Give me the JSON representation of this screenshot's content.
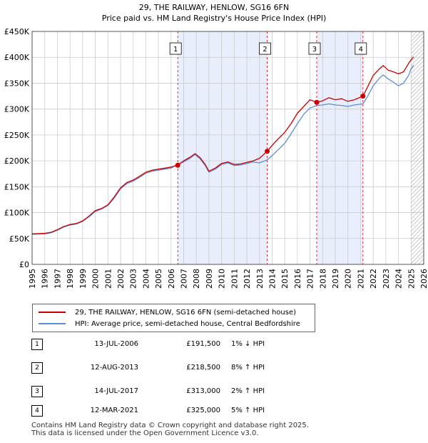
{
  "chart_data": {
    "type": "line",
    "title": "29, THE RAILWAY, HENLOW, SG16 6FN",
    "subtitle": "Price paid vs. HM Land Registry's House Price Index (HPI)",
    "xlim": [
      1995,
      2026
    ],
    "ylim": [
      0,
      450000
    ],
    "y_ticks": [
      0,
      50000,
      100000,
      150000,
      200000,
      250000,
      300000,
      350000,
      400000,
      450000
    ],
    "y_tick_labels": [
      "£0",
      "£50K",
      "£100K",
      "£150K",
      "£200K",
      "£250K",
      "£300K",
      "£350K",
      "£400K",
      "£450K"
    ],
    "x_ticks": [
      1995,
      1996,
      1997,
      1998,
      1999,
      2000,
      2001,
      2002,
      2003,
      2004,
      2005,
      2006,
      2007,
      2008,
      2009,
      2010,
      2011,
      2012,
      2013,
      2014,
      2015,
      2016,
      2017,
      2018,
      2019,
      2020,
      2021,
      2022,
      2023,
      2024,
      2025,
      2026
    ],
    "grid": true,
    "forecast_start": 2025.0,
    "shaded_regions": [
      [
        2006.53,
        2013.61
      ],
      [
        2017.53,
        2021.19
      ]
    ],
    "series": [
      {
        "name": "29, THE RAILWAY, HENLOW, SG16 6FN (semi-detached house)",
        "color": "#cc0000",
        "x": [
          1995.0,
          1995.5,
          1996.0,
          1996.5,
          1997.0,
          1997.5,
          1998.0,
          1998.5,
          1999.0,
          1999.5,
          2000.0,
          2000.5,
          2001.0,
          2001.5,
          2002.0,
          2002.5,
          2003.0,
          2003.5,
          2004.0,
          2004.5,
          2005.0,
          2005.5,
          2006.0,
          2006.53,
          2007.0,
          2007.5,
          2007.9,
          2008.3,
          2008.7,
          2009.0,
          2009.5,
          2010.0,
          2010.5,
          2011.0,
          2011.5,
          2012.0,
          2012.5,
          2013.0,
          2013.61,
          2014.0,
          2014.5,
          2015.0,
          2015.5,
          2016.0,
          2016.5,
          2017.0,
          2017.53,
          2018.0,
          2018.5,
          2019.0,
          2019.5,
          2020.0,
          2020.5,
          2021.19,
          2021.5,
          2022.0,
          2022.5,
          2022.8,
          2023.2,
          2023.6,
          2024.0,
          2024.4,
          2024.8,
          2025.0,
          2025.2
        ],
        "values": [
          59000,
          59500,
          60000,
          62000,
          67000,
          73000,
          77000,
          79000,
          84000,
          93000,
          104000,
          108000,
          115000,
          130000,
          148000,
          158000,
          163000,
          170000,
          178000,
          182000,
          184000,
          186000,
          188000,
          191500,
          200000,
          207000,
          214000,
          206000,
          193000,
          180000,
          186000,
          195000,
          198000,
          193000,
          194000,
          197000,
          200000,
          205000,
          218500,
          230000,
          243000,
          255000,
          272000,
          292000,
          305000,
          318000,
          313000,
          316000,
          322000,
          318000,
          320000,
          315000,
          318000,
          325000,
          340000,
          365000,
          378000,
          384000,
          375000,
          372000,
          368000,
          372000,
          388000,
          395000,
          401000
        ]
      },
      {
        "name": "HPI: Average price, semi-detached house, Central Bedfordshire",
        "color": "#5b8fd6",
        "x": [
          1995.0,
          1995.5,
          1996.0,
          1996.5,
          1997.0,
          1997.5,
          1998.0,
          1998.5,
          1999.0,
          1999.5,
          2000.0,
          2000.5,
          2001.0,
          2001.5,
          2002.0,
          2002.5,
          2003.0,
          2003.5,
          2004.0,
          2004.5,
          2005.0,
          2005.5,
          2006.0,
          2006.53,
          2007.0,
          2007.5,
          2007.9,
          2008.3,
          2008.7,
          2009.0,
          2009.5,
          2010.0,
          2010.5,
          2011.0,
          2011.5,
          2012.0,
          2012.5,
          2013.0,
          2013.61,
          2014.0,
          2014.5,
          2015.0,
          2015.5,
          2016.0,
          2016.5,
          2017.0,
          2017.53,
          2018.0,
          2018.5,
          2019.0,
          2019.5,
          2020.0,
          2020.5,
          2021.19,
          2021.5,
          2022.0,
          2022.5,
          2022.8,
          2023.2,
          2023.6,
          2024.0,
          2024.4,
          2024.8,
          2025.0,
          2025.2
        ],
        "values": [
          58000,
          58500,
          59000,
          61000,
          66000,
          72000,
          76000,
          78000,
          83000,
          92000,
          102000,
          107000,
          114000,
          128000,
          146000,
          156000,
          161000,
          168000,
          176000,
          180000,
          182000,
          184000,
          186000,
          193500,
          198000,
          205000,
          212000,
          204000,
          191000,
          178000,
          184000,
          193000,
          196000,
          191000,
          192000,
          195000,
          198000,
          196000,
          202000,
          210000,
          222000,
          234000,
          252000,
          272000,
          290000,
          302000,
          307000,
          308000,
          310000,
          308000,
          307000,
          305000,
          308000,
          310000,
          322000,
          345000,
          360000,
          366000,
          358000,
          352000,
          345000,
          350000,
          365000,
          378000,
          385000
        ]
      }
    ],
    "sale_markers": [
      {
        "label": "1",
        "x": 2006.53,
        "value": 191500
      },
      {
        "label": "2",
        "x": 2013.61,
        "value": 218500
      },
      {
        "label": "3",
        "x": 2017.53,
        "value": 313000
      },
      {
        "label": "4",
        "x": 2021.19,
        "value": 325000
      }
    ]
  },
  "legend": {
    "property_label": "29, THE RAILWAY, HENLOW, SG16 6FN (semi-detached house)",
    "hpi_label": "HPI: Average price, semi-detached house, Central Bedfordshire"
  },
  "sales": [
    {
      "num": "1",
      "date": "13-JUL-2006",
      "price": "£191,500",
      "hpi": "1% ↓ HPI"
    },
    {
      "num": "2",
      "date": "12-AUG-2013",
      "price": "£218,500",
      "hpi": "8% ↑ HPI"
    },
    {
      "num": "3",
      "date": "14-JUL-2017",
      "price": "£313,000",
      "hpi": "2% ↑ HPI"
    },
    {
      "num": "4",
      "date": "12-MAR-2021",
      "price": "£325,000",
      "hpi": "5% ↑ HPI"
    }
  ],
  "footer": {
    "line1": "Contains HM Land Registry data © Crown copyright and database right 2025.",
    "line2": "This data is licensed under the Open Government Licence v3.0."
  }
}
